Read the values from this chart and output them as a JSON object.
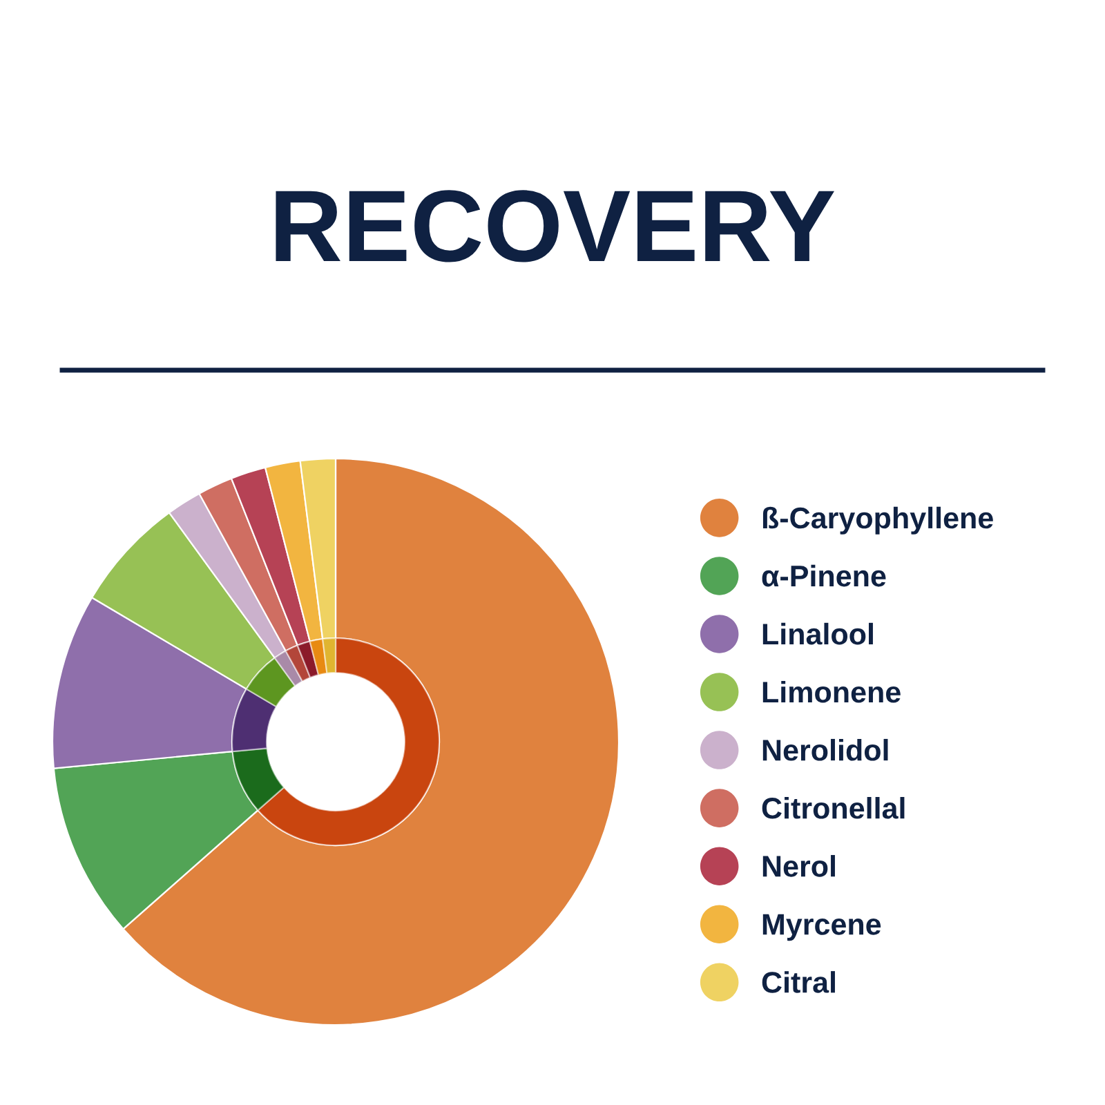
{
  "chart_data": {
    "type": "donut",
    "title": "RECOVERY",
    "categories": [
      "ß-Caryophyllene",
      "α-Pinene",
      "Linalool",
      "Limonene",
      "Nerolidol",
      "Citronellal",
      "Nerol",
      "Myrcene",
      "Citral"
    ],
    "series": [
      {
        "values": [
          63.5,
          10,
          10,
          6.5,
          2,
          2,
          2,
          2,
          2
        ],
        "colors": [
          "#e0823e",
          "#52a456",
          "#8f6fab",
          "#97c155",
          "#cbb1cc",
          "#cf6e62",
          "#b64255",
          "#f2b540",
          "#efd262"
        ]
      },
      {
        "values": [
          63.5,
          10,
          10,
          6.5,
          2,
          2,
          2,
          2,
          2
        ],
        "colors": [
          "#c9450f",
          "#1b6b1c",
          "#4e2f72",
          "#5d9620",
          "#a98aa8",
          "#b3463a",
          "#8b1a2a",
          "#e88a12",
          "#e0b530"
        ]
      }
    ],
    "legend": "right"
  }
}
